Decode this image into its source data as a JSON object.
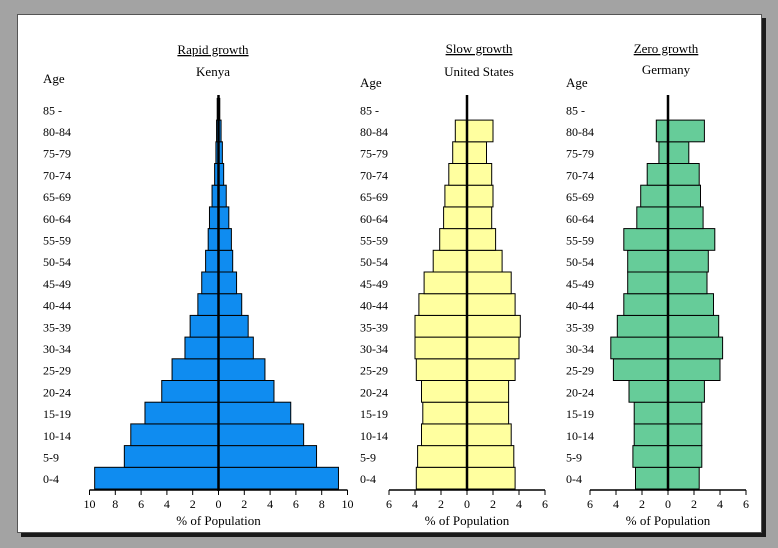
{
  "chart_data": [
    {
      "type": "bar",
      "title": "Rapid growth",
      "subtitle": "Kenya",
      "ylabel": "Age",
      "xlabel": "% of Population",
      "categories": [
        "0-4",
        "5-9",
        "10-14",
        "15-19",
        "20-24",
        "25-29",
        "30-34",
        "35-39",
        "40-44",
        "45-49",
        "50-54",
        "55-59",
        "60-64",
        "65-69",
        "70-74",
        "75-79",
        "80-84",
        "85 -"
      ],
      "series": [
        {
          "side": "male",
          "values": [
            9.6,
            7.3,
            6.8,
            5.7,
            4.4,
            3.6,
            2.6,
            2.2,
            1.6,
            1.3,
            1.0,
            0.8,
            0.7,
            0.5,
            0.3,
            0.2,
            0.15,
            0.1
          ]
        },
        {
          "side": "female",
          "values": [
            9.3,
            7.6,
            6.6,
            5.6,
            4.3,
            3.6,
            2.7,
            2.3,
            1.8,
            1.4,
            1.1,
            1.0,
            0.8,
            0.6,
            0.4,
            0.3,
            0.2,
            0.1
          ]
        }
      ],
      "xlim": [
        -10,
        10
      ],
      "xticks": [
        "10",
        "8",
        "6",
        "4",
        "2",
        "0",
        "2",
        "4",
        "6",
        "8",
        "10"
      ],
      "fill": "#0f8cf0"
    },
    {
      "type": "bar",
      "title": "Slow growth",
      "subtitle": "United States",
      "ylabel": "Age",
      "xlabel": "% of Population",
      "categories": [
        "0-4",
        "5-9",
        "10-14",
        "15-19",
        "20-24",
        "25-29",
        "30-34",
        "35-39",
        "40-44",
        "45-49",
        "50-54",
        "55-59",
        "60-64",
        "65-69",
        "70-74",
        "75-79",
        "80-84",
        "85 -"
      ],
      "series": [
        {
          "side": "male",
          "values": [
            3.9,
            3.8,
            3.5,
            3.4,
            3.5,
            3.9,
            4.0,
            4.0,
            3.7,
            3.3,
            2.6,
            2.1,
            1.8,
            1.7,
            1.4,
            1.1,
            0.9,
            0
          ]
        },
        {
          "side": "female",
          "values": [
            3.7,
            3.6,
            3.4,
            3.2,
            3.2,
            3.7,
            4.0,
            4.1,
            3.7,
            3.4,
            2.7,
            2.2,
            1.9,
            2.0,
            1.9,
            1.5,
            2.0,
            0
          ]
        }
      ],
      "xlim": [
        -6,
        6
      ],
      "xticks": [
        "6",
        "4",
        "2",
        "0",
        "2",
        "4",
        "6"
      ],
      "fill": "#ffff9f"
    },
    {
      "type": "bar",
      "title": "Zero growth",
      "subtitle": "Germany",
      "ylabel": "Age",
      "xlabel": "% of Population",
      "categories": [
        "0-4",
        "5-9",
        "10-14",
        "15-19",
        "20-24",
        "25-29",
        "30-34",
        "35-39",
        "40-44",
        "45-49",
        "50-54",
        "55-59",
        "60-64",
        "65-69",
        "70-74",
        "75-79",
        "80-84",
        "85 -"
      ],
      "series": [
        {
          "side": "male",
          "values": [
            2.5,
            2.7,
            2.6,
            2.6,
            3.0,
            4.2,
            4.4,
            3.9,
            3.4,
            3.1,
            3.1,
            3.4,
            2.4,
            2.1,
            1.6,
            0.7,
            0.9,
            0
          ]
        },
        {
          "side": "female",
          "values": [
            2.4,
            2.6,
            2.6,
            2.6,
            2.8,
            4.0,
            4.2,
            3.9,
            3.5,
            3.0,
            3.1,
            3.6,
            2.7,
            2.5,
            2.4,
            1.6,
            2.8,
            0
          ]
        }
      ],
      "xlim": [
        -6,
        6
      ],
      "xticks": [
        "6",
        "4",
        "2",
        "0",
        "2",
        "4",
        "6"
      ],
      "fill": "#66cc99"
    }
  ]
}
